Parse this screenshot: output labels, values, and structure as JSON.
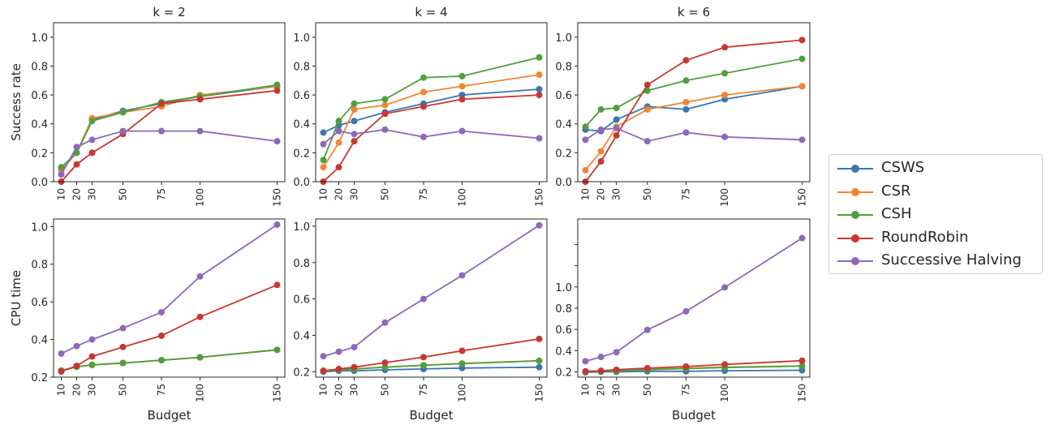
{
  "colors": {
    "CSWS": "#3b75af",
    "CSR": "#ef8636",
    "CSH": "#519e3e",
    "RoundRobin": "#c53932",
    "Successive Halving": "#8d69b8"
  },
  "legend": [
    "CSWS",
    "CSR",
    "CSH",
    "RoundRobin",
    "Successive Halving"
  ],
  "chart_data": [
    {
      "type": "line",
      "title": "k = 2",
      "xlabel": "",
      "ylabel": "Success rate",
      "x": [
        10,
        20,
        30,
        50,
        75,
        100,
        150
      ],
      "xticks": [
        "10",
        "20",
        "30",
        "50",
        "75",
        "100",
        "150"
      ],
      "xlim": [
        5,
        155
      ],
      "ylim": [
        0,
        1.1
      ],
      "yticks": [
        0,
        0.2,
        0.4,
        0.6,
        0.8,
        1.0
      ],
      "ytick_labels": [
        "0.0",
        "0.2",
        "0.4",
        "0.6",
        "0.8",
        "1.0"
      ],
      "series": [
        {
          "name": "CSWS",
          "values": [
            0.08,
            0.2,
            0.43,
            0.49,
            0.54,
            0.59,
            0.66
          ]
        },
        {
          "name": "CSR",
          "values": [
            0.08,
            0.2,
            0.44,
            0.48,
            0.52,
            0.6,
            0.66
          ]
        },
        {
          "name": "CSH",
          "values": [
            0.1,
            0.2,
            0.42,
            0.48,
            0.55,
            0.59,
            0.67
          ]
        },
        {
          "name": "RoundRobin",
          "values": [
            0.0,
            0.12,
            0.2,
            0.33,
            0.54,
            0.57,
            0.63
          ]
        },
        {
          "name": "Successive Halving",
          "values": [
            0.05,
            0.24,
            0.29,
            0.35,
            0.35,
            0.35,
            0.28
          ]
        }
      ]
    },
    {
      "type": "line",
      "title": "k = 4",
      "xlabel": "",
      "ylabel": "",
      "x": [
        10,
        20,
        30,
        50,
        75,
        100,
        150
      ],
      "xticks": [
        "10",
        "20",
        "30",
        "50",
        "75",
        "100",
        "150"
      ],
      "xlim": [
        5,
        155
      ],
      "ylim": [
        0,
        1.1
      ],
      "yticks": [
        0,
        0.2,
        0.4,
        0.6,
        0.8,
        1.0
      ],
      "ytick_labels": [
        "0.0",
        "0.2",
        "0.4",
        "0.6",
        "0.8",
        "1.0"
      ],
      "series": [
        {
          "name": "CSWS",
          "values": [
            0.34,
            0.39,
            0.42,
            0.48,
            0.54,
            0.6,
            0.64
          ]
        },
        {
          "name": "CSR",
          "values": [
            0.1,
            0.27,
            0.5,
            0.53,
            0.62,
            0.66,
            0.74
          ]
        },
        {
          "name": "CSH",
          "values": [
            0.15,
            0.42,
            0.54,
            0.57,
            0.72,
            0.73,
            0.86
          ]
        },
        {
          "name": "RoundRobin",
          "values": [
            0.0,
            0.1,
            0.28,
            0.47,
            0.52,
            0.57,
            0.6
          ]
        },
        {
          "name": "Successive Halving",
          "values": [
            0.26,
            0.35,
            0.33,
            0.36,
            0.31,
            0.35,
            0.3
          ]
        }
      ]
    },
    {
      "type": "line",
      "title": "k = 6",
      "xlabel": "",
      "ylabel": "",
      "x": [
        10,
        20,
        30,
        50,
        75,
        100,
        150
      ],
      "xticks": [
        "10",
        "20",
        "30",
        "50",
        "75",
        "100",
        "150"
      ],
      "xlim": [
        5,
        155
      ],
      "ylim": [
        0,
        1.1
      ],
      "yticks": [
        0,
        0.2,
        0.4,
        0.6,
        0.8,
        1.0
      ],
      "ytick_labels": [
        "0.0",
        "0.2",
        "0.4",
        "0.6",
        "0.8",
        "1.0"
      ],
      "series": [
        {
          "name": "CSWS",
          "values": [
            0.36,
            0.35,
            0.43,
            0.52,
            0.5,
            0.57,
            0.66
          ]
        },
        {
          "name": "CSR",
          "values": [
            0.08,
            0.21,
            0.38,
            0.5,
            0.55,
            0.6,
            0.66
          ]
        },
        {
          "name": "CSH",
          "values": [
            0.38,
            0.5,
            0.51,
            0.63,
            0.7,
            0.75,
            0.85
          ]
        },
        {
          "name": "RoundRobin",
          "values": [
            0.0,
            0.14,
            0.32,
            0.67,
            0.84,
            0.93,
            0.98
          ]
        },
        {
          "name": "Successive Halving",
          "values": [
            0.29,
            0.36,
            0.37,
            0.28,
            0.34,
            0.31,
            0.29
          ]
        }
      ]
    },
    {
      "type": "line",
      "title": "",
      "xlabel": "Budget",
      "ylabel": "CPU time",
      "x": [
        10,
        20,
        30,
        50,
        75,
        100,
        150
      ],
      "xticks": [
        "10",
        "20",
        "30",
        "50",
        "75",
        "100",
        "150"
      ],
      "xlim": [
        5,
        155
      ],
      "ylim": [
        0.2,
        1.04
      ],
      "yticks": [
        0.2,
        0.4,
        0.6,
        0.8,
        1.0
      ],
      "ytick_labels": [
        "0.2",
        "0.4",
        "0.6",
        "0.8",
        "1.0"
      ],
      "series": [
        {
          "name": "CSWS",
          "values": [
            0.235,
            0.255,
            0.265,
            0.275,
            0.29,
            0.305,
            0.345
          ]
        },
        {
          "name": "CSR",
          "values": [
            0.235,
            0.255,
            0.265,
            0.275,
            0.29,
            0.305,
            0.345
          ]
        },
        {
          "name": "CSH",
          "values": [
            0.235,
            0.255,
            0.265,
            0.275,
            0.29,
            0.305,
            0.345
          ]
        },
        {
          "name": "RoundRobin",
          "values": [
            0.23,
            0.26,
            0.31,
            0.36,
            0.42,
            0.52,
            0.69
          ]
        },
        {
          "name": "Successive Halving",
          "values": [
            0.325,
            0.365,
            0.4,
            0.46,
            0.545,
            0.735,
            1.01
          ]
        }
      ]
    },
    {
      "type": "line",
      "title": "",
      "xlabel": "Budget",
      "ylabel": "",
      "x": [
        10,
        20,
        30,
        50,
        75,
        100,
        150
      ],
      "xticks": [
        "10",
        "20",
        "30",
        "50",
        "75",
        "100",
        "150"
      ],
      "xlim": [
        5,
        155
      ],
      "ylim": [
        0.17,
        1.04
      ],
      "yticks": [
        0.2,
        0.4,
        0.6,
        0.8,
        1.0
      ],
      "ytick_labels": [
        "0.2",
        "0.4",
        "0.6",
        "0.8",
        "1.0"
      ],
      "series": [
        {
          "name": "CSWS",
          "values": [
            0.2,
            0.205,
            0.205,
            0.21,
            0.215,
            0.22,
            0.225
          ]
        },
        {
          "name": "CSR",
          "values": [
            0.205,
            0.21,
            0.215,
            0.225,
            0.235,
            0.245,
            0.26
          ]
        },
        {
          "name": "CSH",
          "values": [
            0.205,
            0.21,
            0.215,
            0.225,
            0.235,
            0.245,
            0.26
          ]
        },
        {
          "name": "RoundRobin",
          "values": [
            0.205,
            0.215,
            0.225,
            0.25,
            0.28,
            0.315,
            0.38
          ]
        },
        {
          "name": "Successive Halving",
          "values": [
            0.285,
            0.31,
            0.335,
            0.47,
            0.6,
            0.73,
            1.005
          ]
        }
      ]
    },
    {
      "type": "line",
      "title": "",
      "xlabel": "Budget",
      "ylabel": "",
      "x": [
        10,
        20,
        30,
        50,
        75,
        100,
        150
      ],
      "xticks": [
        "10",
        "20",
        "30",
        "50",
        "75",
        "100",
        "150"
      ],
      "xlim": [
        5,
        155
      ],
      "ylim": [
        0.15,
        1.64
      ],
      "yticks": [
        0.2,
        0.4,
        0.6,
        0.8,
        1.0,
        1.2,
        1.4
      ],
      "ytick_labels": [
        "0.2",
        "0.4",
        "0.6",
        "0.8",
        "1.0",
        "",
        ""
      ],
      "series": [
        {
          "name": "CSWS",
          "values": [
            0.195,
            0.2,
            0.2,
            0.205,
            0.205,
            0.21,
            0.215
          ]
        },
        {
          "name": "CSR",
          "values": [
            0.2,
            0.205,
            0.21,
            0.225,
            0.235,
            0.245,
            0.255
          ]
        },
        {
          "name": "CSH",
          "values": [
            0.2,
            0.205,
            0.21,
            0.22,
            0.23,
            0.24,
            0.255
          ]
        },
        {
          "name": "RoundRobin",
          "values": [
            0.205,
            0.21,
            0.22,
            0.235,
            0.25,
            0.27,
            0.305
          ]
        },
        {
          "name": "Successive Halving",
          "values": [
            0.3,
            0.34,
            0.385,
            0.595,
            0.77,
            0.995,
            1.46
          ]
        }
      ]
    }
  ]
}
